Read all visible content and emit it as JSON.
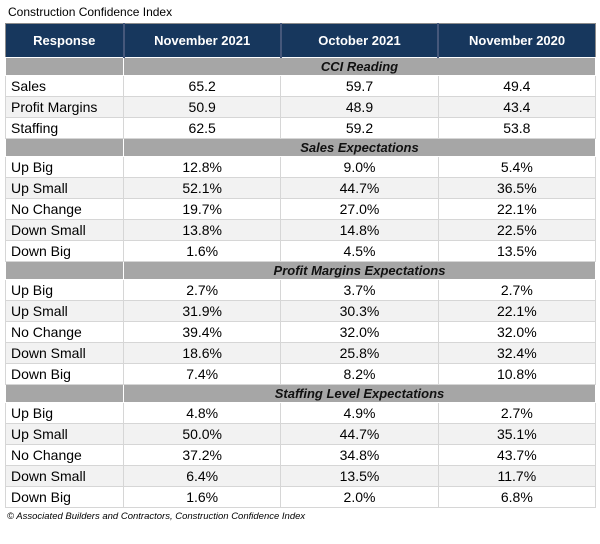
{
  "chart_data": {
    "type": "table",
    "title": "Construction Confidence Index",
    "columns": [
      "Response",
      "November 2021",
      "October 2021",
      "November 2020"
    ],
    "sections": [
      {
        "label": "CCI Reading",
        "rows": [
          {
            "label": "Sales",
            "values": [
              "65.2",
              "59.7",
              "49.4"
            ]
          },
          {
            "label": "Profit Margins",
            "values": [
              "50.9",
              "48.9",
              "43.4"
            ]
          },
          {
            "label": "Staffing",
            "values": [
              "62.5",
              "59.2",
              "53.8"
            ]
          }
        ]
      },
      {
        "label": "Sales Expectations",
        "rows": [
          {
            "label": "Up Big",
            "values": [
              "12.8%",
              "9.0%",
              "5.4%"
            ]
          },
          {
            "label": "Up Small",
            "values": [
              "52.1%",
              "44.7%",
              "36.5%"
            ]
          },
          {
            "label": "No Change",
            "values": [
              "19.7%",
              "27.0%",
              "22.1%"
            ]
          },
          {
            "label": "Down Small",
            "values": [
              "13.8%",
              "14.8%",
              "22.5%"
            ]
          },
          {
            "label": "Down Big",
            "values": [
              "1.6%",
              "4.5%",
              "13.5%"
            ]
          }
        ]
      },
      {
        "label": "Profit Margins Expectations",
        "rows": [
          {
            "label": "Up Big",
            "values": [
              "2.7%",
              "3.7%",
              "2.7%"
            ]
          },
          {
            "label": "Up Small",
            "values": [
              "31.9%",
              "30.3%",
              "22.1%"
            ]
          },
          {
            "label": "No Change",
            "values": [
              "39.4%",
              "32.0%",
              "32.0%"
            ]
          },
          {
            "label": "Down Small",
            "values": [
              "18.6%",
              "25.8%",
              "32.4%"
            ]
          },
          {
            "label": "Down Big",
            "values": [
              "7.4%",
              "8.2%",
              "10.8%"
            ]
          }
        ]
      },
      {
        "label": "Staffing Level Expectations",
        "rows": [
          {
            "label": "Up Big",
            "values": [
              "4.8%",
              "4.9%",
              "2.7%"
            ]
          },
          {
            "label": "Up Small",
            "values": [
              "50.0%",
              "44.7%",
              "35.1%"
            ]
          },
          {
            "label": "No Change",
            "values": [
              "37.2%",
              "34.8%",
              "43.7%"
            ]
          },
          {
            "label": "Down Small",
            "values": [
              "6.4%",
              "13.5%",
              "11.7%"
            ]
          },
          {
            "label": "Down Big",
            "values": [
              "1.6%",
              "2.0%",
              "6.8%"
            ]
          }
        ]
      }
    ],
    "footer": "© Associated Builders and Contractors, Construction Confidence Index"
  },
  "colors": {
    "header_bg": "#17375D",
    "header_text": "#FFFFFF",
    "section_bg": "#A6A6A6",
    "row_alt_bg": "#F2F2F2"
  }
}
